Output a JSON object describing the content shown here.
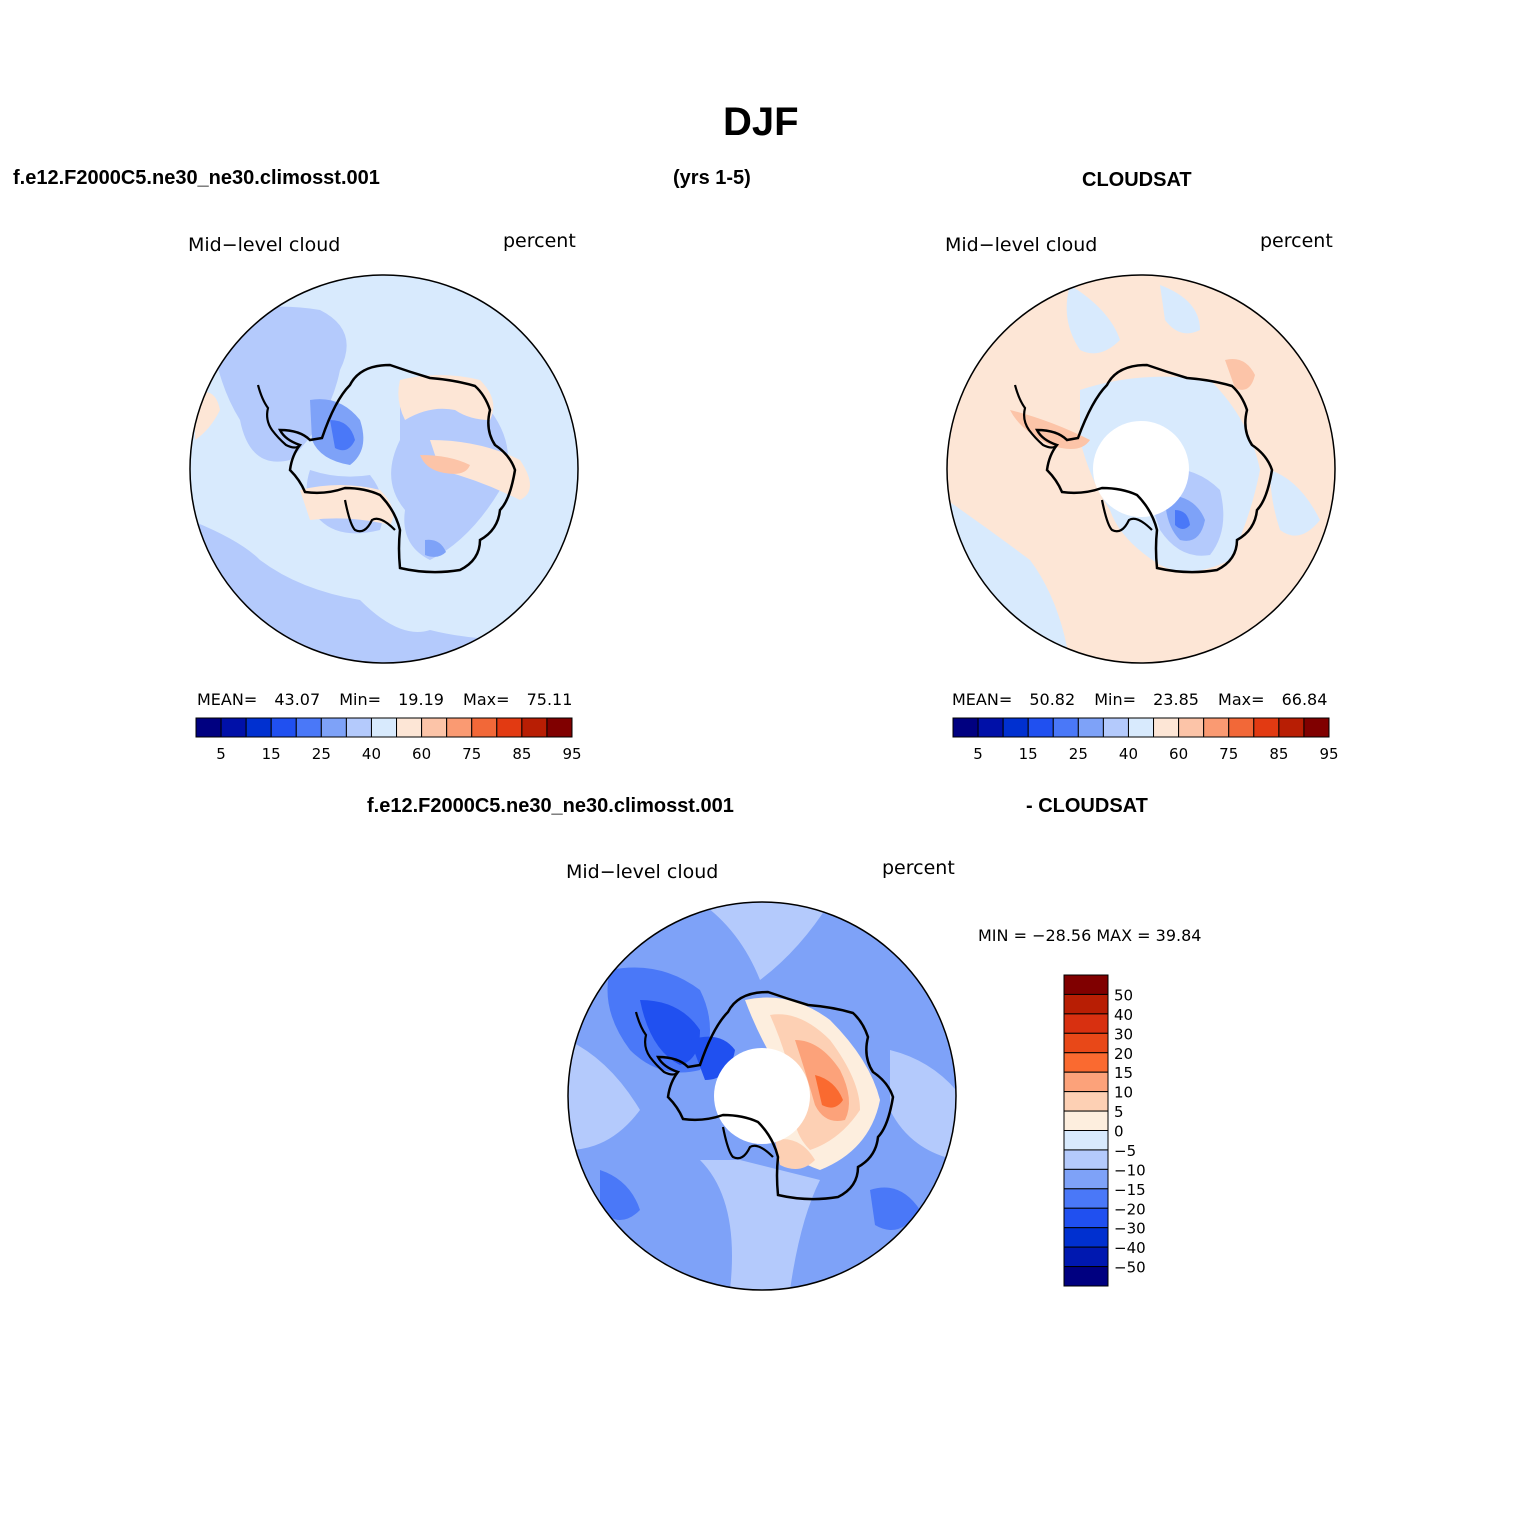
{
  "figure": {
    "title": "DJF",
    "header_left": "f.e12.F2000C5.ne30_ne30.climosst.001",
    "header_mid": "(yrs 1-5)",
    "header_right": "CLOUDSAT",
    "diff_header_left": "f.e12.F2000C5.ne30_ne30.climosst.001",
    "diff_header_right": "- CLOUDSAT"
  },
  "panels": {
    "model": {
      "variable": "Mid−level cloud",
      "units": "percent",
      "stats": {
        "mean_label": "MEAN=",
        "mean": "43.07",
        "min_label": "Min=",
        "min": "19.19",
        "max_label": "Max=",
        "max": "75.11"
      }
    },
    "obs": {
      "variable": "Mid−level cloud",
      "units": "percent",
      "stats": {
        "mean_label": "MEAN=",
        "mean": "50.82",
        "min_label": "Min=",
        "min": "23.85",
        "max_label": "Max=",
        "max": "66.84"
      }
    },
    "diff": {
      "variable": "Mid−level cloud",
      "units": "percent",
      "minmax": "MIN = −28.56 MAX =  39.84"
    }
  },
  "colorbars": {
    "abs": {
      "colors": [
        "#000080",
        "#0010a8",
        "#0030d0",
        "#2050f0",
        "#4a78f8",
        "#7ea2f8",
        "#b4cafc",
        "#d8eafd",
        "#fde6d6",
        "#fcc4a8",
        "#fa9a72",
        "#f26838",
        "#e23a12",
        "#b81e04",
        "#800000"
      ],
      "labels": [
        "5",
        "15",
        "25",
        "40",
        "60",
        "75",
        "85",
        "95"
      ]
    },
    "diff": {
      "colors_top_to_bottom": [
        "#800000",
        "#b81e04",
        "#d83010",
        "#e84818",
        "#fa6a30",
        "#fca27a",
        "#fdd0b4",
        "#fdeede",
        "#d8eafd",
        "#b4cafc",
        "#7ea2f8",
        "#4a78f8",
        "#2050f0",
        "#0030d0",
        "#0018b0",
        "#000080"
      ],
      "labels_top_to_bottom": [
        "50",
        "40",
        "30",
        "20",
        "15",
        "10",
        "5",
        "0",
        "−5",
        "−10",
        "−15",
        "−20",
        "−30",
        "−40",
        "−50"
      ]
    }
  },
  "map_fill_colors": {
    "model_base": "#d8eafd",
    "obs_base": "#fde6d6",
    "diff_base": "#7ea2f8",
    "polar_hole": "#ffffff",
    "coastline": "#000000"
  }
}
